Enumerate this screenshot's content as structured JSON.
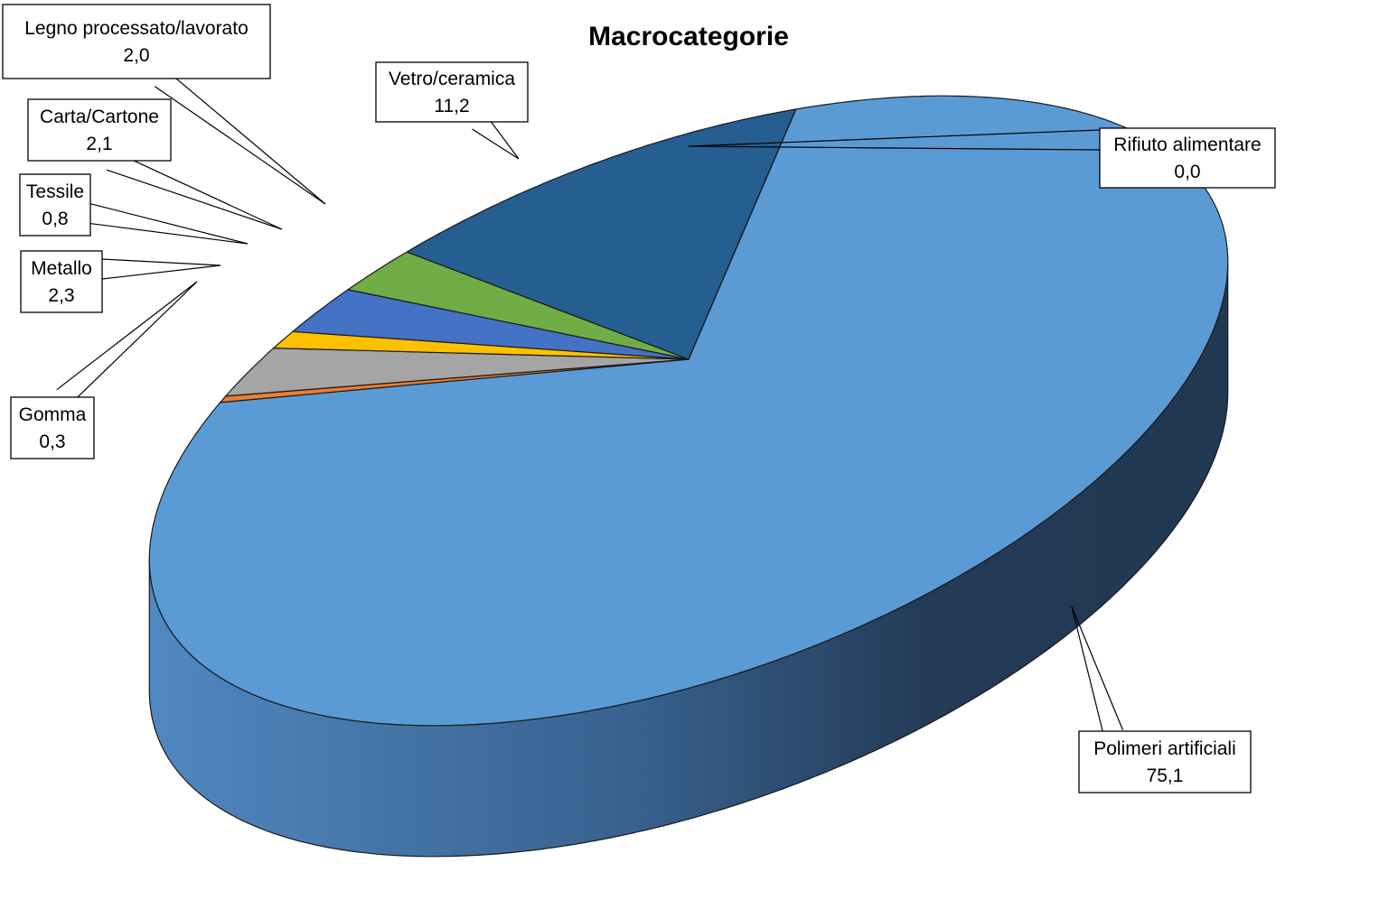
{
  "chart_data": {
    "type": "pie",
    "title": "Macrocategorie",
    "categories": [
      "Polimeri artificiali",
      "Gomma",
      "Metallo",
      "Tessile",
      "Carta/Cartone",
      "Legno processato/lavorato",
      "Vetro/ceramica",
      "Rifiuto alimentare"
    ],
    "values": [
      75.1,
      0.3,
      2.3,
      0.8,
      2.1,
      2.0,
      11.2,
      0.0
    ],
    "value_labels": [
      "75,1",
      "0,3",
      "2,3",
      "0,8",
      "2,1",
      "2,0",
      "11,2",
      "0,0"
    ],
    "colors": [
      "#5b9bd5",
      "#ed7d31",
      "#a5a5a5",
      "#ffc000",
      "#4472c4",
      "#70ad47",
      "#255e91",
      "#9e480e"
    ],
    "style": "3d-pie",
    "legend": "none",
    "data_labels": "callouts with category name and value"
  }
}
